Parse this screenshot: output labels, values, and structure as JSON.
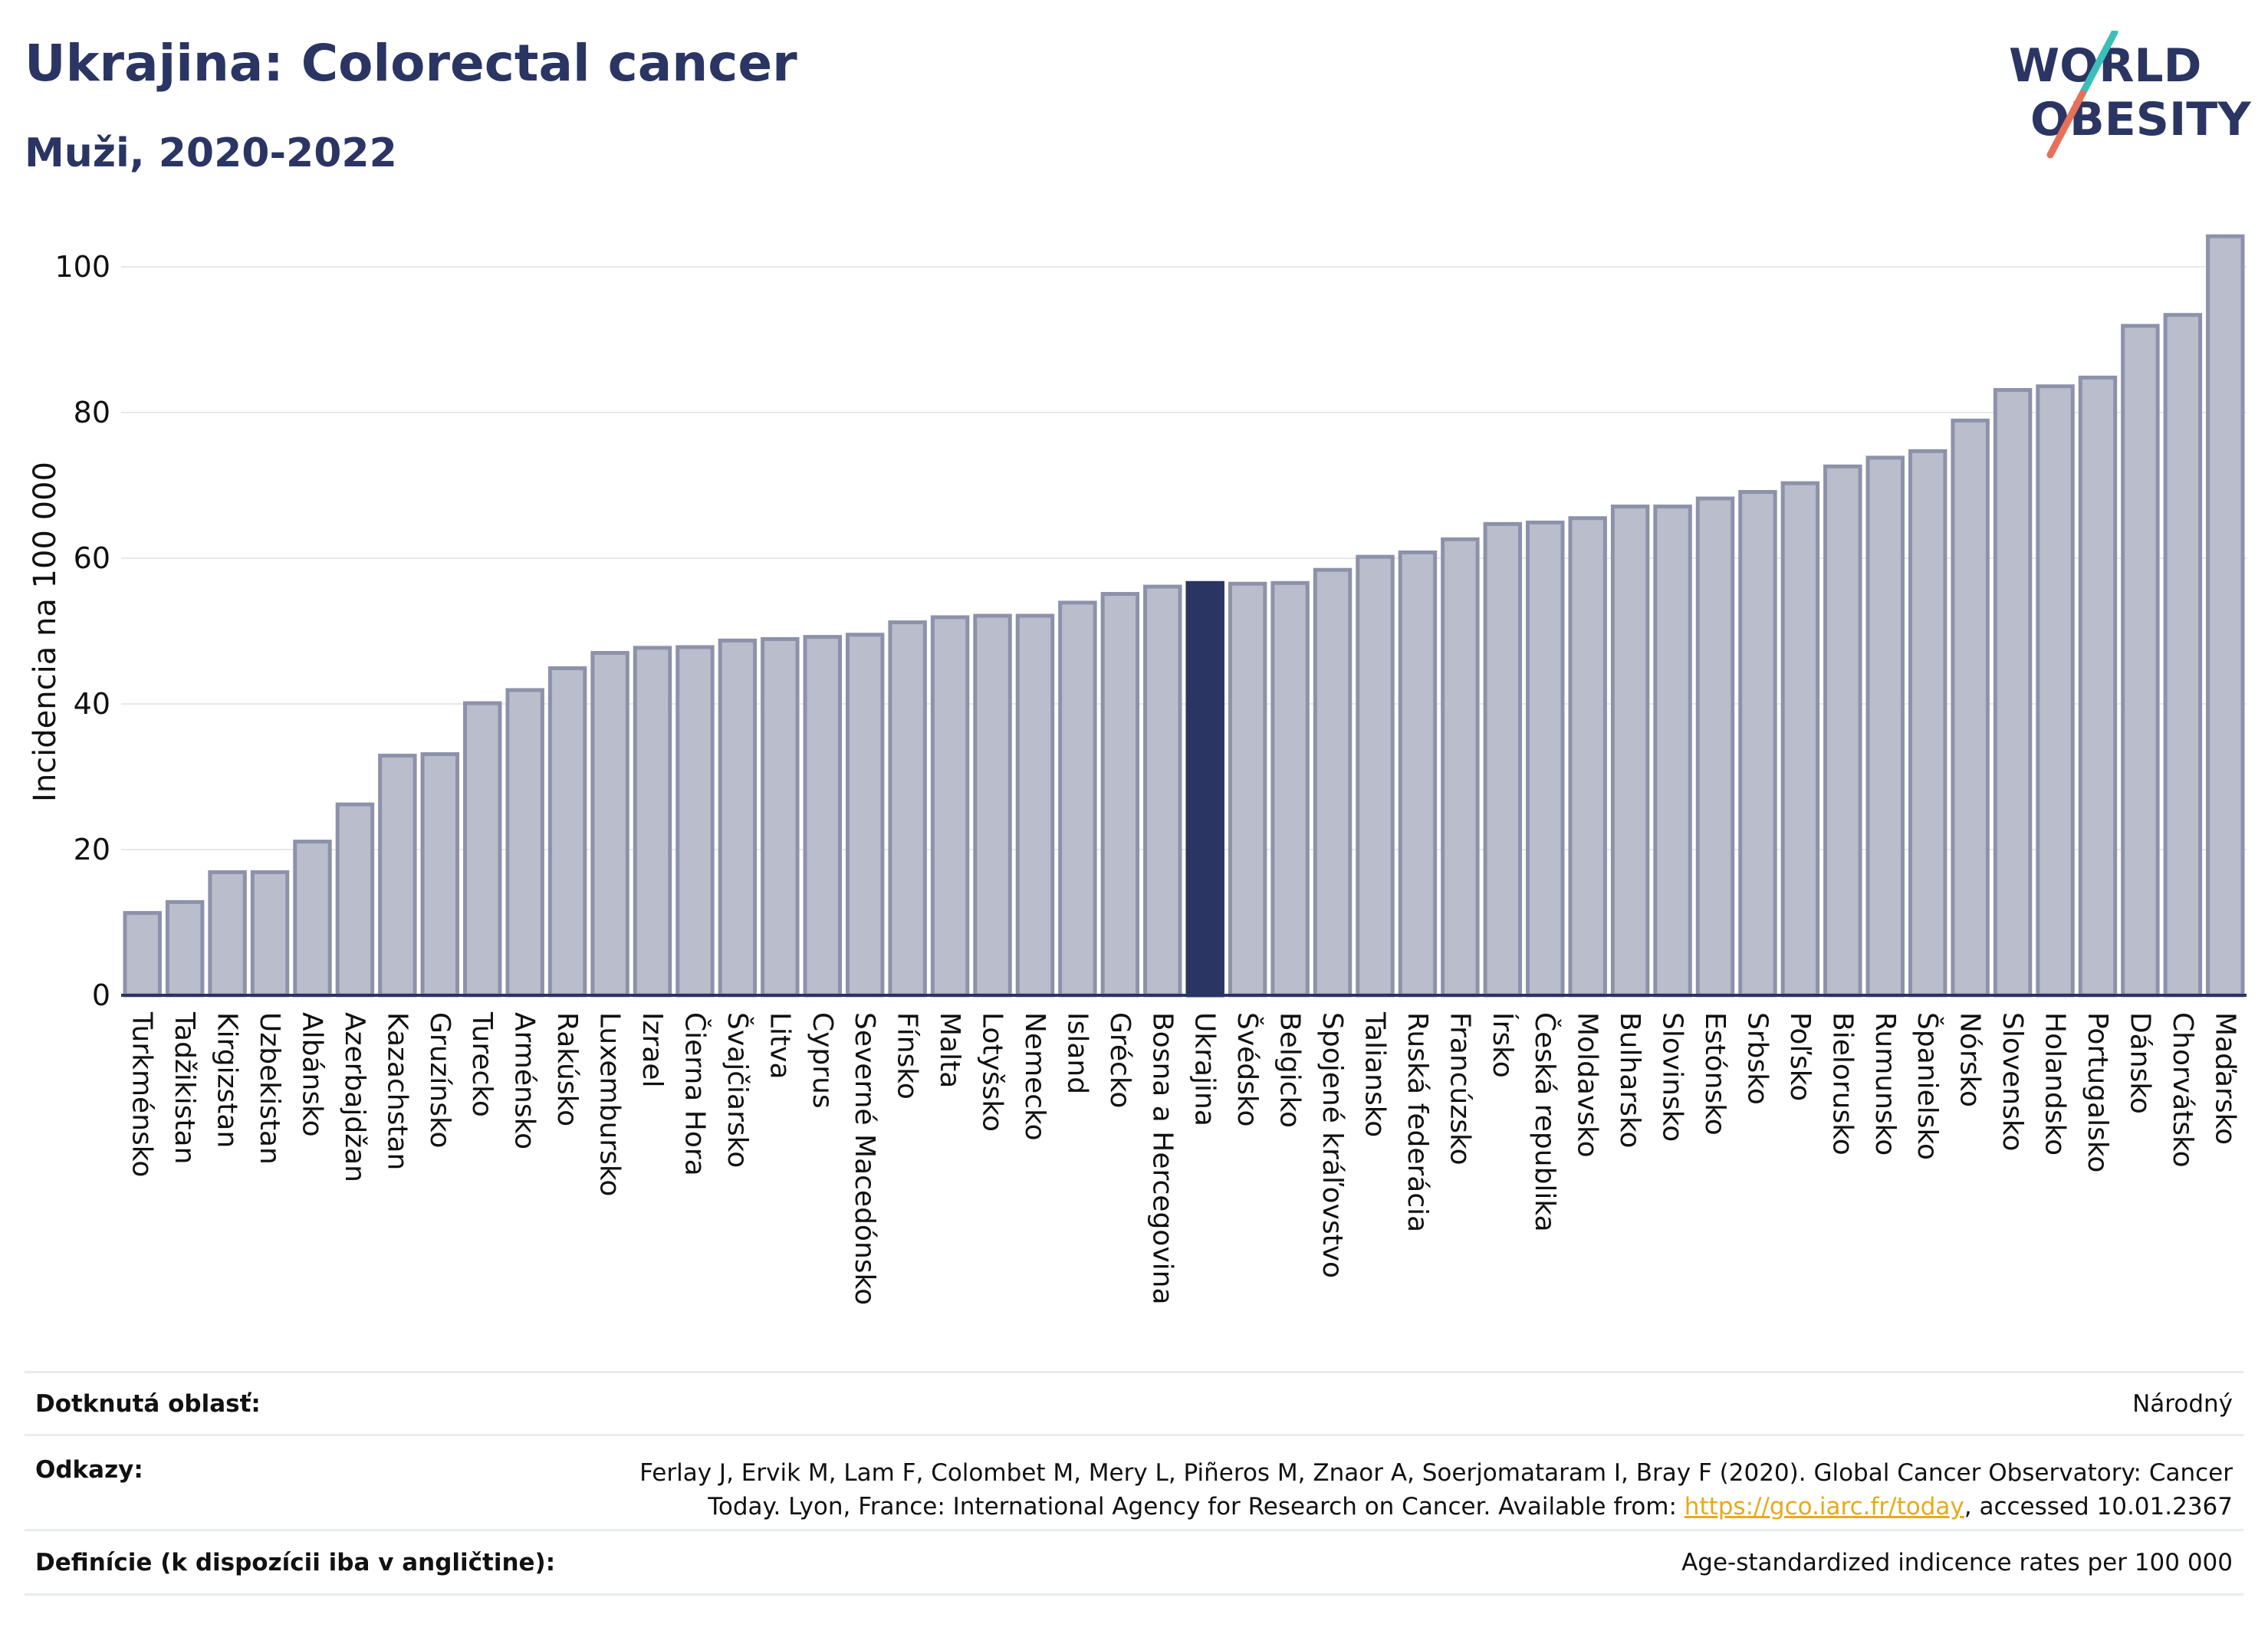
{
  "header": {
    "title": "Ukrajina: Colorectal cancer",
    "subtitle": "Muži, 2020-2022"
  },
  "logo": {
    "line1": "WORLD",
    "line2": "OBESITY"
  },
  "colors": {
    "bar_default": "#b9bdcc",
    "bar_default_stroke": "#8d92aa",
    "bar_highlight": "#2a3563",
    "title": "#2a3563",
    "grid": "#e8e8ec",
    "logo_teal": "#3cbfb8",
    "logo_coral": "#e8705a"
  },
  "chart_data": {
    "type": "bar",
    "ylabel": "Incidencia na 100 000",
    "ylim": [
      0,
      104
    ],
    "yticks": [
      0,
      20,
      40,
      60,
      80,
      100
    ],
    "grid": true,
    "highlight": "Ukrajina",
    "categories": [
      "Turkménsko",
      "Tadžikistan",
      "Kirgizstan",
      "Uzbekistan",
      "Albánsko",
      "Azerbajdžan",
      "Kazachstan",
      "Gruzínsko",
      "Turecko",
      "Arménsko",
      "Rakúsko",
      "Luxembursko",
      "Izrael",
      "Čierna Hora",
      "Švajčiarsko",
      "Litva",
      "Cyprus",
      "Severné Macedónsko",
      "Fínsko",
      "Malta",
      "Lotyšsko",
      "Nemecko",
      "Island",
      "Grécko",
      "Bosna a Hercegovina",
      "Ukrajina",
      "Švédsko",
      "Belgicko",
      "Spojené kráľovstvo",
      "Taliansko",
      "Ruská federácia",
      "Francúzsko",
      "Írsko",
      "Česká republika",
      "Moldavsko",
      "Bulharsko",
      "Slovinsko",
      "Estónsko",
      "Srbsko",
      "Poľsko",
      "Bielorusko",
      "Rumunsko",
      "Španielsko",
      "Nórsko",
      "Slovensko",
      "Holandsko",
      "Portugalsko",
      "Dánsko",
      "Chorvátsko",
      "Maďarsko"
    ],
    "values": [
      11.3,
      12.8,
      16.9,
      16.9,
      21.1,
      26.2,
      32.9,
      33.1,
      40.1,
      41.9,
      44.9,
      47.0,
      47.7,
      47.8,
      48.7,
      48.9,
      49.2,
      49.5,
      51.2,
      51.9,
      52.1,
      52.1,
      53.9,
      55.1,
      56.1,
      56.6,
      56.5,
      56.6,
      58.4,
      60.2,
      60.8,
      62.6,
      64.7,
      64.9,
      65.5,
      67.1,
      67.1,
      68.2,
      69.1,
      70.3,
      72.6,
      73.8,
      74.7,
      78.9,
      83.1,
      83.6,
      84.8,
      91.9,
      93.4,
      104.2
    ]
  },
  "info": {
    "region_label": "Dotknutá oblasť:",
    "region_value": "Národný",
    "refs_label": "Odkazy:",
    "refs_text1": "Ferlay J, Ervik M, Lam F, Colombet M, Mery L, Piñeros M, Znaor A, Soerjomataram I, Bray F (2020). Global Cancer Observatory: Cancer Today. Lyon, France: International Agency for Research on Cancer. Available from: ",
    "refs_link": "https://gco.iarc.fr/today",
    "refs_text2": ", accessed 10.01.2367",
    "def_label": "Definície (k dispozícii iba v angličtine):",
    "def_value": "Age-standardized indicence rates per 100 000"
  }
}
